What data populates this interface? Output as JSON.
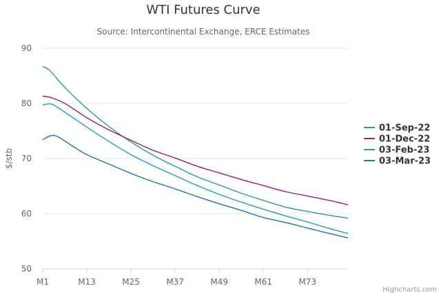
{
  "chart_data": {
    "type": "line",
    "title": "WTI Futures Curve",
    "subtitle": "Source: Intercontinental Exchange, ERCE Estimates",
    "ylabel": "$/stb",
    "xlabel": "",
    "ylim": [
      50,
      90
    ],
    "y_ticks": [
      50,
      60,
      70,
      80,
      90
    ],
    "x_ticks": [
      "M1",
      "M13",
      "M25",
      "M37",
      "M49",
      "M61",
      "M73"
    ],
    "x_tick_months": [
      1,
      13,
      25,
      37,
      49,
      61,
      73
    ],
    "x_range": [
      1,
      84
    ],
    "grid": true,
    "legend_position": "right",
    "series": [
      {
        "name": "01-Sep-22",
        "color": "#2a9d8f",
        "x": [
          1,
          3,
          7,
          13,
          19,
          25,
          31,
          37,
          43,
          49,
          55,
          61,
          67,
          73,
          79,
          84
        ],
        "values": [
          86.7,
          85.9,
          82.9,
          79.1,
          75.8,
          73.0,
          70.6,
          68.6,
          66.7,
          65.2,
          63.7,
          62.4,
          61.2,
          60.4,
          59.7,
          59.2
        ]
      },
      {
        "name": "01-Dec-22",
        "color": "#9c1d6e",
        "x": [
          1,
          3,
          7,
          13,
          19,
          25,
          31,
          37,
          43,
          49,
          55,
          61,
          67,
          73,
          79,
          84
        ],
        "values": [
          81.3,
          81.1,
          80.0,
          77.4,
          75.2,
          73.3,
          71.5,
          70.1,
          68.6,
          67.4,
          66.2,
          65.1,
          64.0,
          63.2,
          62.4,
          61.6
        ]
      },
      {
        "name": "03-Feb-23",
        "color": "#1f9dc4",
        "x": [
          1,
          3,
          5,
          13,
          19,
          25,
          31,
          37,
          43,
          49,
          55,
          61,
          67,
          73,
          79,
          84
        ],
        "values": [
          79.7,
          79.9,
          79.3,
          75.7,
          73.1,
          70.7,
          68.7,
          66.9,
          65.1,
          63.5,
          62.1,
          60.8,
          59.6,
          58.5,
          57.3,
          56.4
        ]
      },
      {
        "name": "03-Mar-23",
        "color": "#1a6fbd",
        "x": [
          1,
          3,
          5,
          9,
          13,
          19,
          25,
          31,
          37,
          43,
          49,
          55,
          61,
          67,
          73,
          79,
          84
        ],
        "values": [
          73.4,
          74.1,
          74.0,
          72.3,
          70.7,
          69.0,
          67.3,
          65.8,
          64.5,
          63.1,
          61.8,
          60.6,
          59.3,
          58.4,
          57.4,
          56.4,
          55.6
        ]
      }
    ]
  },
  "credits": "Highcharts.com"
}
